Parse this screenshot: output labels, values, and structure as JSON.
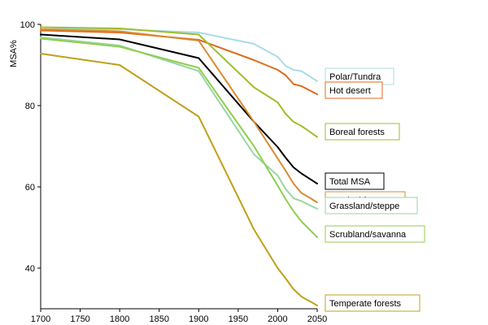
{
  "chart_data": {
    "type": "line",
    "ylabel": "MSA%",
    "xlabel": "",
    "xlim": [
      1700,
      2050
    ],
    "ylim": [
      30,
      100
    ],
    "xticks": [
      1700,
      1750,
      1800,
      1850,
      1900,
      1950,
      2000,
      2050
    ],
    "yticks": [
      40,
      60,
      80,
      100
    ],
    "grid": false,
    "legend": "right, boxed labels at series end",
    "series": [
      {
        "name": "Polar/Tundra",
        "color": "#a8dce6",
        "x": [
          1700,
          1800,
          1900,
          1970,
          2000,
          2010,
          2020,
          2030,
          2050
        ],
        "y": [
          98.8,
          98.8,
          98.0,
          95.2,
          92.0,
          89.8,
          88.8,
          88.5,
          86.0
        ]
      },
      {
        "name": "Hot desert",
        "color": "#e06a1c",
        "x": [
          1700,
          1800,
          1900,
          1970,
          2000,
          2010,
          2020,
          2030,
          2050
        ],
        "y": [
          98.5,
          98.0,
          96.2,
          91.2,
          88.8,
          87.5,
          85.3,
          84.8,
          82.8
        ]
      },
      {
        "name": "Boreal forests",
        "color": "#9fbe2c",
        "x": [
          1700,
          1800,
          1900,
          1970,
          2000,
          2010,
          2020,
          2030,
          2050
        ],
        "y": [
          99.3,
          99.0,
          97.5,
          84.5,
          80.8,
          78.0,
          76.0,
          75.0,
          72.3
        ]
      },
      {
        "name": "Total MSA",
        "color": "#000000",
        "x": [
          1700,
          1800,
          1900,
          1970,
          2000,
          2010,
          2020,
          2030,
          2050
        ],
        "y": [
          97.5,
          96.3,
          91.7,
          76.0,
          69.8,
          67.2,
          64.8,
          63.3,
          60.8
        ]
      },
      {
        "name": "Tropical forests",
        "color": "#d98a30",
        "x": [
          1700,
          1800,
          1900,
          1970,
          2000,
          2010,
          2020,
          2030,
          2050
        ],
        "y": [
          98.8,
          98.3,
          96.0,
          76.0,
          67.0,
          64.0,
          60.8,
          58.5,
          56.2
        ]
      },
      {
        "name": "Grassland/steppe",
        "color": "#99d6a2",
        "x": [
          1700,
          1800,
          1900,
          1970,
          2000,
          2010,
          2020,
          2030,
          2050
        ],
        "y": [
          96.8,
          94.8,
          88.5,
          68.0,
          62.8,
          59.5,
          57.2,
          56.5,
          54.6
        ]
      },
      {
        "name": "Scrubland/savanna",
        "color": "#8fce50",
        "x": [
          1700,
          1800,
          1900,
          1970,
          2000,
          2010,
          2020,
          2030,
          2050
        ],
        "y": [
          96.5,
          94.5,
          89.3,
          70.0,
          60.3,
          57.0,
          54.0,
          51.5,
          47.6
        ]
      },
      {
        "name": "Temperate forests",
        "color": "#c0a018",
        "x": [
          1700,
          1800,
          1900,
          1970,
          2000,
          2010,
          2020,
          2030,
          2050
        ],
        "y": [
          92.8,
          90.0,
          77.3,
          49.5,
          40.0,
          37.5,
          34.8,
          33.0,
          30.8
        ]
      }
    ],
    "legend_entries": [
      {
        "text": "Polar/Tundra",
        "series": 0
      },
      {
        "text": "Hot desert",
        "series": 1
      },
      {
        "text": "Boreal forests",
        "series": 2
      },
      {
        "text": "Total MSA",
        "series": 3
      },
      {
        "text": "Tropical forests",
        "series": 4
      },
      {
        "text": "Grassland/steppe",
        "series": 5
      },
      {
        "text": "Scrubland/savanna",
        "series": 6
      },
      {
        "text": "Temperate forests",
        "series": 7
      }
    ]
  }
}
